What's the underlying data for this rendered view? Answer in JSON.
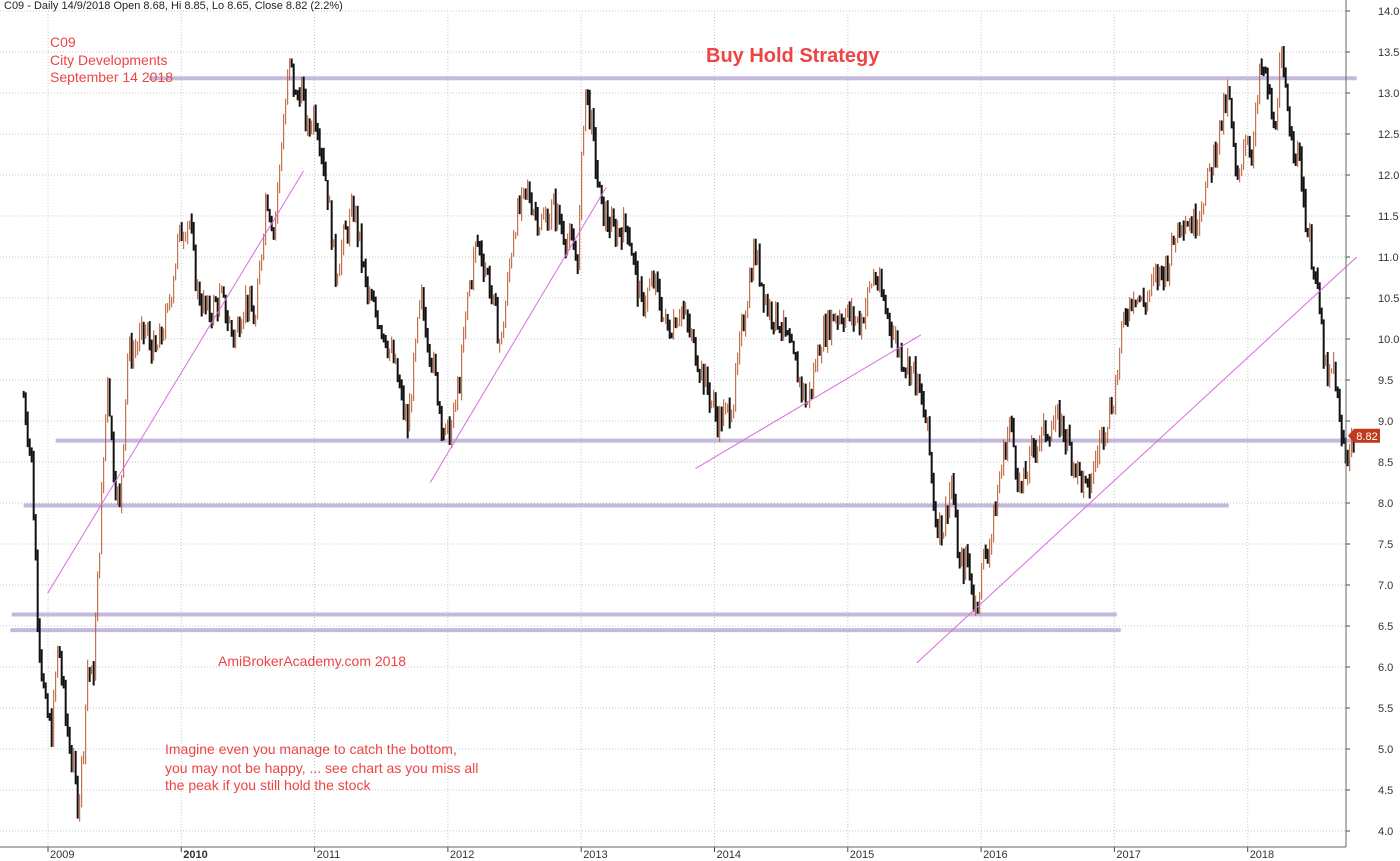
{
  "header": "C09 - Daily 14/9/2018 Open 8.68, Hi 8.85, Lo 8.65, Close 8.82 (2.2%)",
  "labels": {
    "ticker": "C09",
    "company": "City Developments",
    "date": "September 14 2018",
    "title": "Buy Hold Strategy",
    "website": "AmiBrokerAcademy.com 2018",
    "note": [
      "Imagine even you manage to catch the bottom,",
      "you may not be happy, ... see chart as you miss all",
      "the peak if you still hold the stock"
    ]
  },
  "colors": {
    "candle_up": "#b8562a",
    "candle_down": "#111111",
    "hline": "#c5b8dd",
    "trendline": "#d96ce0",
    "annotation": "#ee4444",
    "last_price_tag": "#c23a1e"
  },
  "chart_data": {
    "type": "line",
    "style": "candlestick",
    "ylim": [
      4.0,
      14.0
    ],
    "y_ticks": [
      4.0,
      4.5,
      5.0,
      5.5,
      6.0,
      6.5,
      7.0,
      7.5,
      8.0,
      8.5,
      9.0,
      9.5,
      10.0,
      10.5,
      11.0,
      11.5,
      12.0,
      12.5,
      13.0,
      13.5,
      14.0
    ],
    "y_tick_labels": [
      "4.0",
      "4.5",
      "5.0",
      "5.5",
      "6.0",
      "6.5",
      "7.0",
      "7.5",
      "8.0",
      "8.5",
      "9.0",
      "9.5",
      "10.0",
      "10.5",
      "11.0",
      "11.5",
      "12.0",
      "12.5",
      "13.0",
      "13.5",
      "14.0"
    ],
    "x_labels": [
      "2009",
      "2010",
      "2011",
      "2012",
      "2013",
      "2014",
      "2015",
      "2016",
      "2017",
      "2018"
    ],
    "x_years": [
      2009,
      2010,
      2011,
      2012,
      2013,
      2014,
      2015,
      2016,
      2017,
      2018
    ],
    "xlim": [
      2008.72,
      2018.72
    ],
    "grid": true,
    "last_price": 8.82,
    "last_price_label": "8.82",
    "series": [
      {
        "x": [
          2008.72,
          2008.78,
          2008.83,
          2008.88,
          2008.93,
          2008.98,
          2009.04,
          2009.09,
          2009.13,
          2009.17,
          2009.2,
          2009.24,
          2009.28,
          2009.31,
          2009.35,
          2009.39,
          2009.44,
          2009.5,
          2009.56,
          2009.63,
          2009.71,
          2009.8,
          2009.88,
          2009.96,
          2010.02,
          2010.1,
          2010.2,
          2010.3,
          2010.38,
          2010.46,
          2010.54,
          2010.6,
          2010.66,
          2010.72,
          2010.76,
          2010.8,
          2010.85,
          2010.9,
          2010.95,
          2011.0,
          2011.06,
          2011.12,
          2011.2,
          2011.3,
          2011.4,
          2011.5,
          2011.6,
          2011.7,
          2011.8,
          2011.88,
          2011.93,
          2012.0,
          2012.05,
          2012.12,
          2012.2,
          2012.3,
          2012.4,
          2012.5,
          2012.6,
          2012.7,
          2012.8,
          2012.88,
          2012.93,
          2012.98,
          2013.05,
          2013.15,
          2013.25,
          2013.35,
          2013.45,
          2013.55,
          2013.65,
          2013.75,
          2013.85,
          2013.93,
          2014.0,
          2014.05,
          2014.1,
          2014.2,
          2014.3,
          2014.4,
          2014.5,
          2014.6,
          2014.7,
          2014.8,
          2014.9,
          2015.0,
          2015.1,
          2015.2,
          2015.3,
          2015.4,
          2015.5,
          2015.56,
          2015.62,
          2015.68,
          2015.74,
          2015.8,
          2015.86,
          2015.92,
          2015.98,
          2016.05,
          2016.12,
          2016.2,
          2016.3,
          2016.4,
          2016.5,
          2016.6,
          2016.7,
          2016.8,
          2016.9,
          2016.98,
          2017.05,
          2017.12,
          2017.2,
          2017.3,
          2017.4,
          2017.5,
          2017.6,
          2017.7,
          2017.76,
          2017.82,
          2017.88,
          2017.94,
          2018.0,
          2018.05,
          2018.1,
          2018.15,
          2018.2,
          2018.25,
          2018.3,
          2018.35,
          2018.4,
          2018.45,
          2018.5,
          2018.55,
          2018.6,
          2018.65,
          2018.7
        ],
        "values": [
          9.3,
          8.5,
          6.5,
          5.5,
          5.2,
          6.3,
          5.3,
          4.8,
          4.3,
          5.1,
          6.0,
          5.8,
          7.2,
          8.2,
          9.6,
          8.5,
          7.9,
          9.8,
          9.9,
          10.1,
          9.8,
          10.3,
          11.2,
          11.5,
          10.6,
          10.3,
          10.5,
          10.0,
          10.5,
          10.2,
          11.8,
          11.3,
          12.5,
          13.4,
          12.9,
          13.1,
          12.5,
          12.8,
          12.4,
          11.8,
          10.8,
          11.2,
          11.6,
          10.5,
          10.2,
          9.7,
          8.9,
          10.5,
          9.6,
          8.8,
          8.9,
          9.6,
          10.5,
          11.2,
          10.8,
          9.9,
          11.4,
          11.8,
          11.4,
          11.6,
          11.2,
          11.0,
          13.1,
          12.6,
          11.6,
          11.3,
          11.4,
          10.4,
          10.7,
          10.1,
          10.4,
          9.9,
          9.4,
          9.0,
          9.1,
          9.3,
          10.0,
          11.1,
          10.4,
          10.2,
          9.7,
          9.2,
          10.0,
          10.3,
          10.3,
          10.2,
          10.8,
          10.3,
          9.8,
          9.6,
          8.9,
          7.8,
          7.7,
          8.3,
          7.2,
          7.3,
          6.7,
          7.3,
          7.6,
          8.4,
          9.0,
          8.1,
          8.7,
          8.9,
          9.0,
          8.5,
          8.1,
          8.8,
          9.3,
          10.3,
          10.6,
          10.4,
          10.7,
          10.9,
          11.5,
          11.4,
          11.9,
          12.6,
          13.0,
          11.8,
          12.5,
          12.3,
          13.3,
          13.1,
          12.5,
          13.4,
          12.8,
          12.4,
          12.1,
          11.3,
          10.9,
          10.2,
          9.4,
          9.7,
          8.8,
          8.6,
          8.82
        ]
      }
    ],
    "horizontal_levels": [
      {
        "value": 13.18,
        "x_range": [
          2009.66,
          2018.72
        ]
      },
      {
        "value": 8.76,
        "x_range": [
          2008.96,
          2018.72
        ]
      },
      {
        "value": 7.97,
        "x_range": [
          2008.72,
          2017.76
        ]
      },
      {
        "value": 6.64,
        "x_range": [
          2008.63,
          2016.92
        ]
      },
      {
        "value": 6.45,
        "x_range": [
          2008.62,
          2016.95
        ]
      }
    ],
    "trend_lines": [
      {
        "from": [
          2008.9,
          6.9
        ],
        "to": [
          2010.82,
          12.05
        ]
      },
      {
        "from": [
          2011.77,
          8.25
        ],
        "to": [
          2013.09,
          11.85
        ]
      },
      {
        "from": [
          2013.76,
          8.42
        ],
        "to": [
          2015.45,
          10.05
        ]
      },
      {
        "from": [
          2015.42,
          6.05
        ],
        "to": [
          2018.72,
          11.0
        ]
      }
    ]
  }
}
